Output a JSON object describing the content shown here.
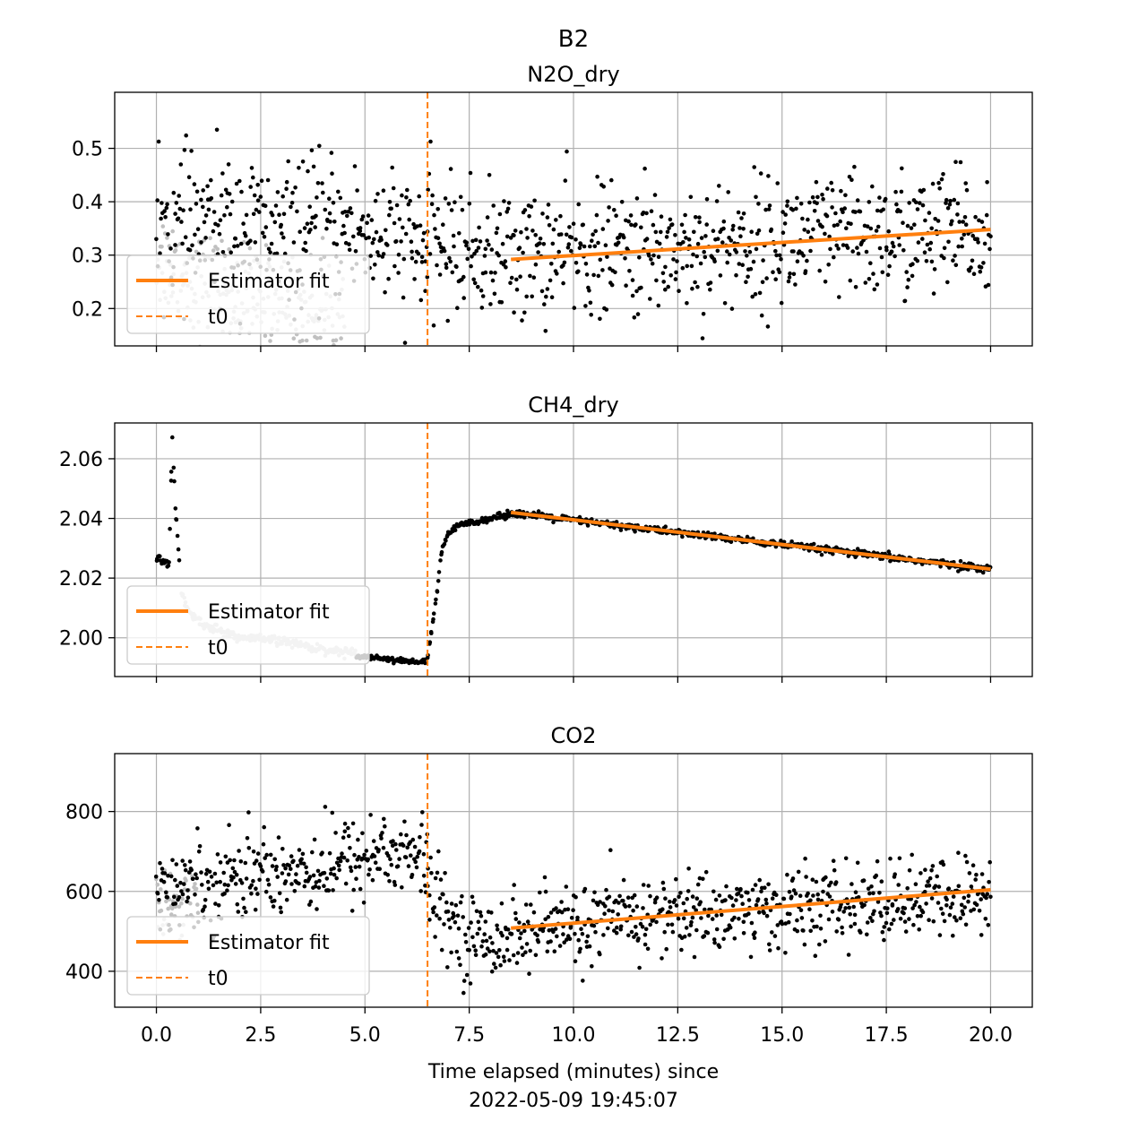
{
  "suptitle": "B2",
  "xlabel_line1": "Time elapsed (minutes) since",
  "xlabel_line2": "2022-05-09 19:45:07",
  "colors": {
    "fit": "#ff7f0e",
    "points": "#000000",
    "excluded": "#c0c0c0",
    "grid": "#b0b0b0"
  },
  "legend": {
    "fit_label": "Estimator fit",
    "t0_label": "t0",
    "placement": "lower-left"
  },
  "chart_data": [
    {
      "type": "scatter",
      "title": "N2O_dry",
      "xlim": [
        -1,
        21
      ],
      "ylim": [
        0.13,
        0.605
      ],
      "xticks": [
        0,
        2.5,
        5,
        7.5,
        10,
        12.5,
        15,
        17.5,
        20
      ],
      "xtick_labels": [
        "0.0",
        "2.5",
        "5.0",
        "7.5",
        "10.0",
        "12.5",
        "15.0",
        "17.5",
        "20.0"
      ],
      "yticks": [
        0.2,
        0.3,
        0.4,
        0.5
      ],
      "ytick_labels": [
        "0.2",
        "0.3",
        "0.4",
        "0.5"
      ],
      "t0": 6.5,
      "fit": {
        "x": [
          8.5,
          20.0
        ],
        "y": [
          0.292,
          0.348
        ]
      },
      "series": [
        {
          "role": "excluded",
          "x": [
            0.0,
            1.0,
            2.0,
            4.5
          ],
          "y": [
            0.3,
            0.25,
            0.22,
            0.18
          ],
          "noise": 0.05
        },
        {
          "role": "pre_t0",
          "x": [
            0.0,
            2.0,
            3.0,
            4.0,
            5.0,
            6.5
          ],
          "y": [
            0.34,
            0.36,
            0.33,
            0.35,
            0.34,
            0.31
          ],
          "noise": 0.065
        },
        {
          "role": "post_t0",
          "x": [
            6.5,
            8.0,
            12.0,
            16.0,
            20.0
          ],
          "y": [
            0.33,
            0.3,
            0.31,
            0.33,
            0.34
          ],
          "noise": 0.06
        }
      ]
    },
    {
      "type": "scatter",
      "title": "CH4_dry",
      "xlim": [
        -1,
        21
      ],
      "ylim": [
        1.987,
        2.072
      ],
      "xticks": [
        0,
        2.5,
        5,
        7.5,
        10,
        12.5,
        15,
        17.5,
        20
      ],
      "xtick_labels": [
        "0.0",
        "2.5",
        "5.0",
        "7.5",
        "10.0",
        "12.5",
        "15.0",
        "17.5",
        "20.0"
      ],
      "yticks": [
        2.0,
        2.02,
        2.04,
        2.06
      ],
      "ytick_labels": [
        "2.00",
        "2.02",
        "2.04",
        "2.06"
      ],
      "t0": 6.5,
      "fit": {
        "x": [
          8.5,
          20.0
        ],
        "y": [
          2.042,
          2.023
        ]
      },
      "series": [
        {
          "role": "pre_black",
          "x": [
            0.0,
            0.15,
            0.3,
            0.38,
            0.45,
            0.55
          ],
          "y": [
            2.027,
            2.026,
            2.024,
            2.067,
            2.045,
            2.025
          ],
          "noise": 0.0005
        },
        {
          "role": "excluded",
          "x": [
            0.6,
            0.8,
            1.2,
            2.0,
            3.0,
            4.0,
            4.8
          ],
          "y": [
            2.015,
            2.008,
            2.004,
            2.0,
            1.999,
            1.996,
            1.995
          ],
          "noise": 0.0007
        },
        {
          "role": "flat_black",
          "x": [
            4.8,
            5.5,
            6.0,
            6.45
          ],
          "y": [
            1.994,
            1.993,
            1.992,
            1.992
          ],
          "noise": 0.0004
        },
        {
          "role": "rise_black",
          "x": [
            6.5,
            6.7,
            6.85,
            7.0,
            7.3,
            8.0,
            8.4
          ],
          "y": [
            1.993,
            2.012,
            2.03,
            2.035,
            2.038,
            2.04,
            2.041
          ],
          "noise": 0.0005
        },
        {
          "role": "post_black",
          "x": [
            8.4,
            20.0
          ],
          "y": [
            2.042,
            2.023
          ],
          "noise": 0.0006
        }
      ]
    },
    {
      "type": "scatter",
      "title": "CO2",
      "xlim": [
        -1,
        21
      ],
      "ylim": [
        310,
        945
      ],
      "xticks": [
        0,
        2.5,
        5,
        7.5,
        10,
        12.5,
        15,
        17.5,
        20
      ],
      "xtick_labels": [
        "0.0",
        "2.5",
        "5.0",
        "7.5",
        "10.0",
        "12.5",
        "15.0",
        "17.5",
        "20.0"
      ],
      "yticks": [
        400,
        600,
        800
      ],
      "ytick_labels": [
        "400",
        "600",
        "800"
      ],
      "t0": 6.5,
      "fit": {
        "x": [
          8.5,
          20.0
        ],
        "y": [
          508,
          604
        ]
      },
      "series": [
        {
          "role": "excluded",
          "x": [
            0.0,
            1.0
          ],
          "y": [
            560,
            600
          ],
          "noise": 40
        },
        {
          "role": "pre_t0",
          "x": [
            0.0,
            2.0,
            4.0,
            5.5,
            6.5
          ],
          "y": [
            600,
            640,
            660,
            700,
            680
          ],
          "noise": 55
        },
        {
          "role": "post_t0",
          "x": [
            6.5,
            7.5,
            9.0,
            12.0,
            16.0,
            20.0
          ],
          "y": [
            600,
            480,
            500,
            540,
            560,
            590
          ],
          "noise": 50
        }
      ]
    }
  ]
}
